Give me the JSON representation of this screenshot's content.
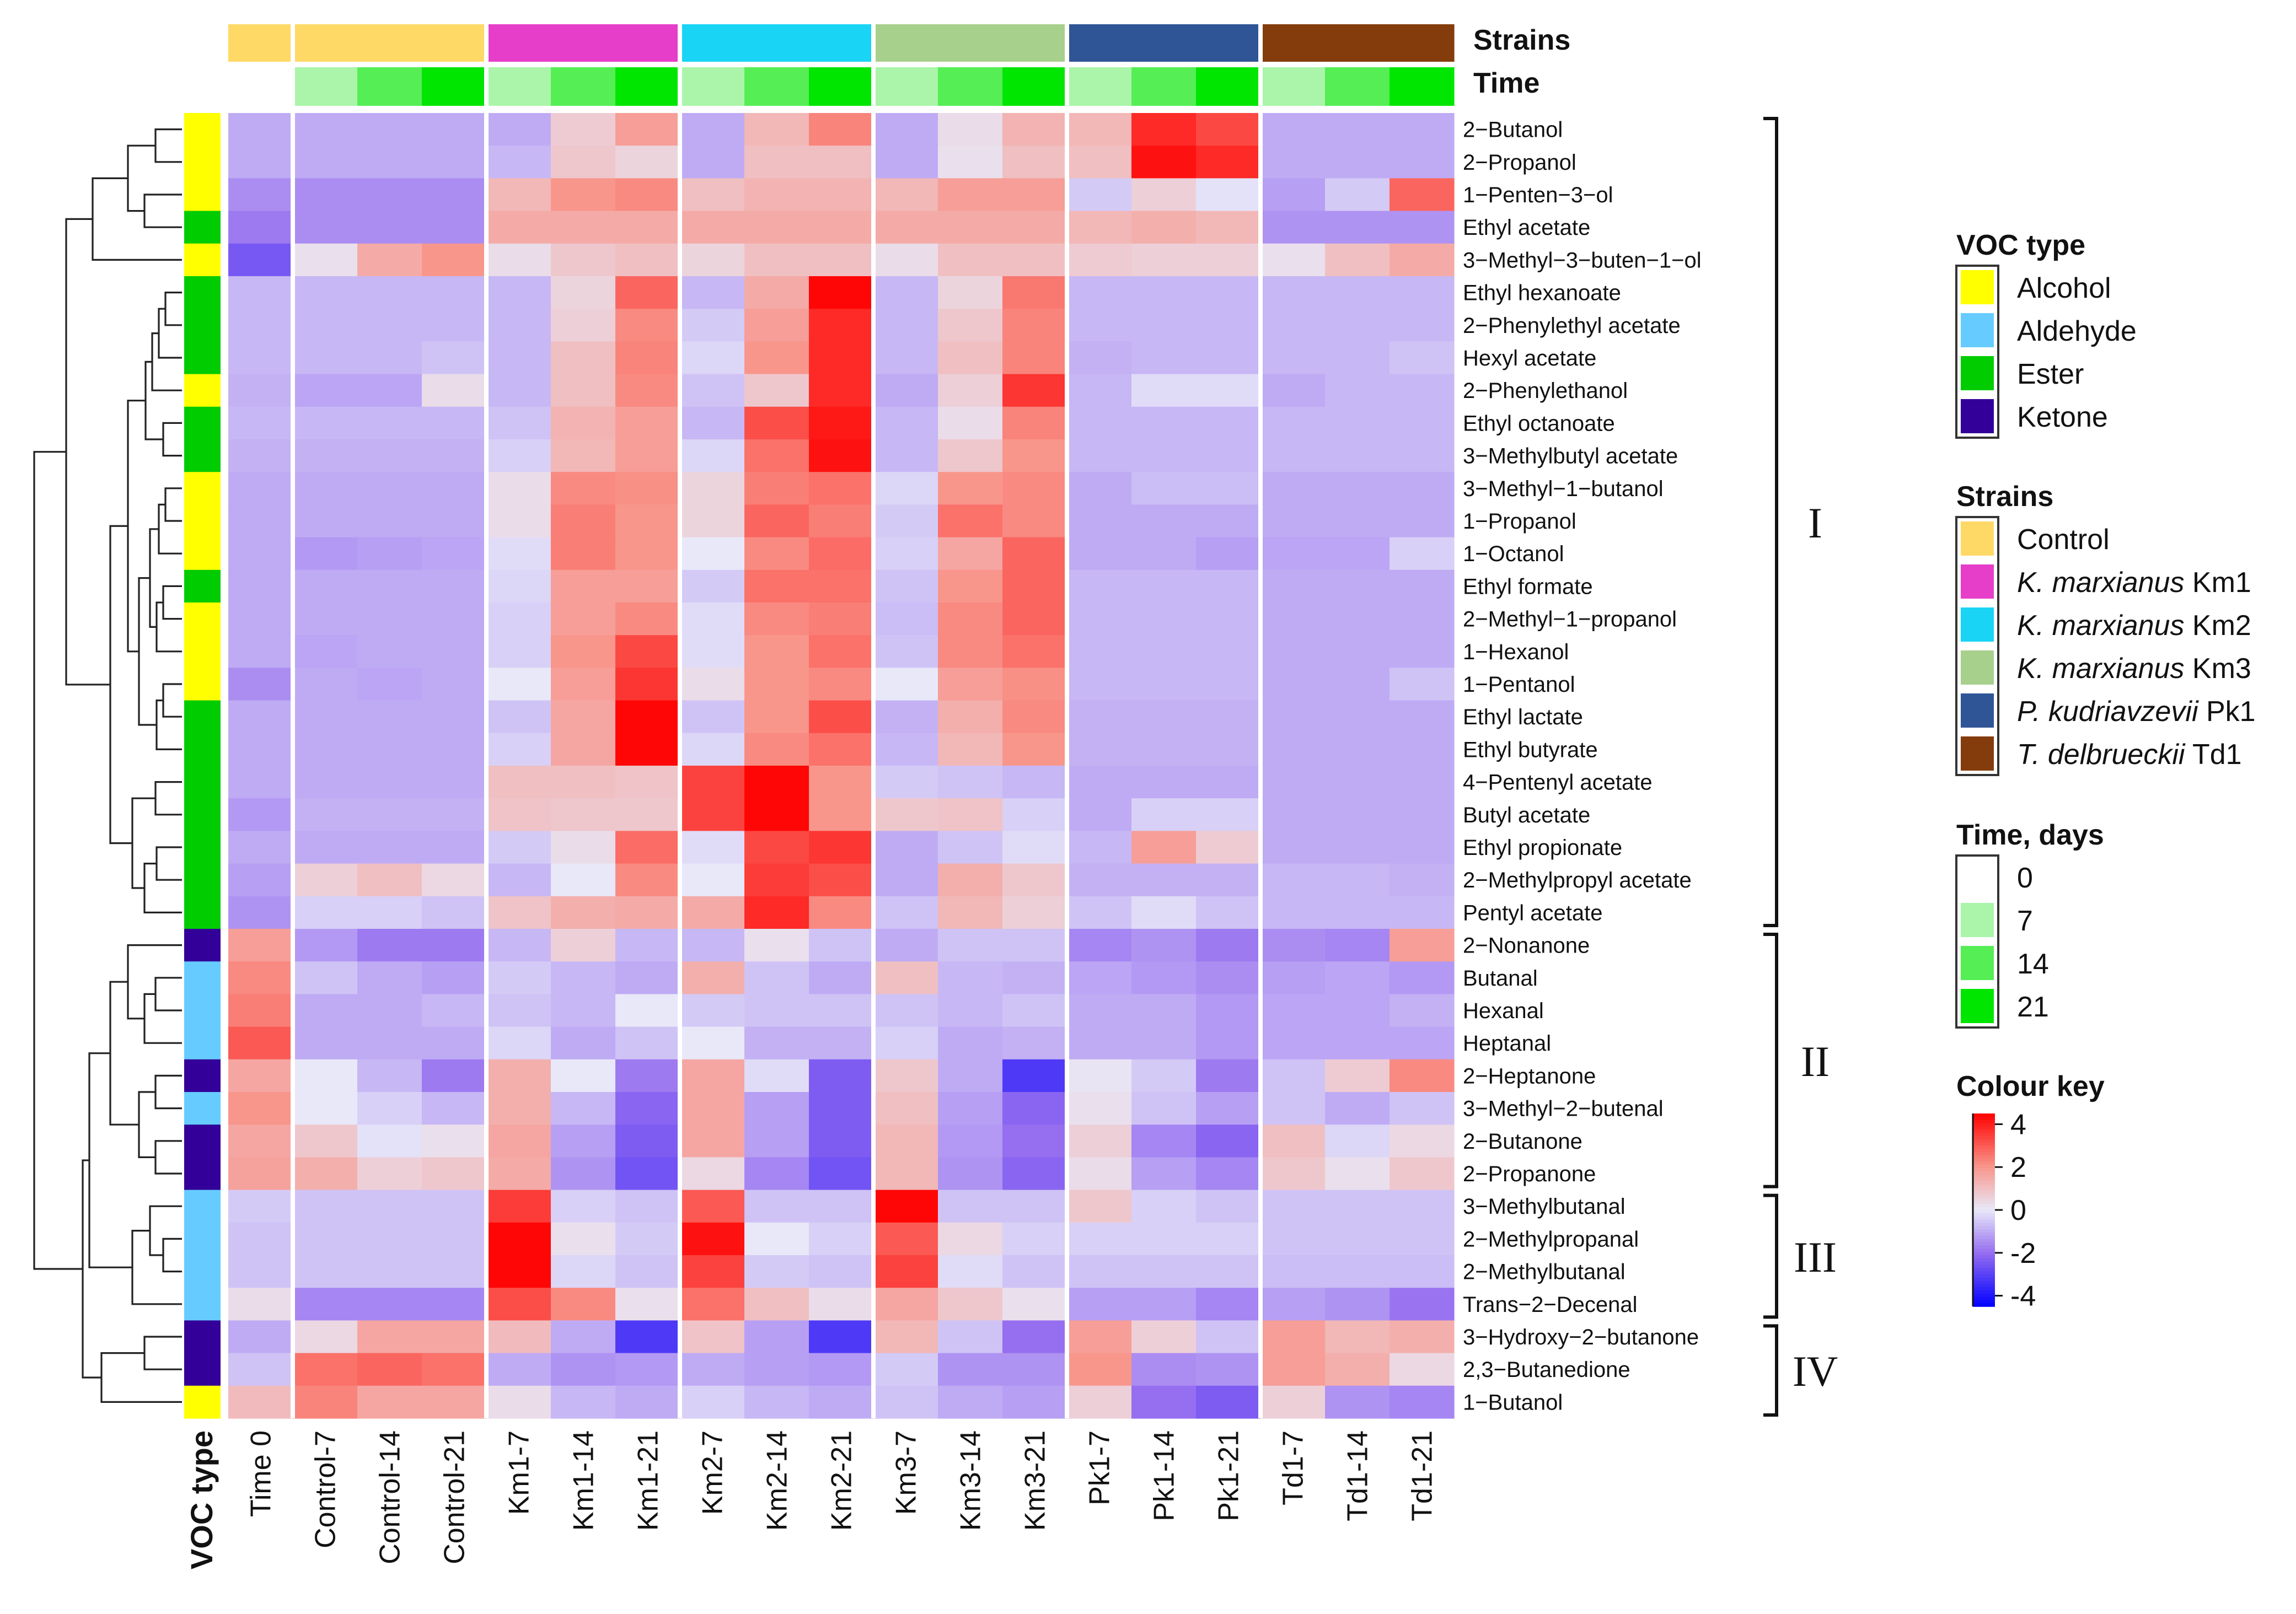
{
  "chart_data": {
    "type": "heatmap",
    "title": "",
    "header_labels": {
      "strains": "Strains",
      "time": "Time"
    },
    "columns": [
      "Time 0",
      "Control-7",
      "Control-14",
      "Control-21",
      "Km1-7",
      "Km1-14",
      "Km1-21",
      "Km2-7",
      "Km2-14",
      "Km2-21",
      "Km3-7",
      "Km3-14",
      "Km3-21",
      "Pk1-7",
      "Pk1-14",
      "Pk1-21",
      "Td1-7",
      "Td1-14",
      "Td1-21"
    ],
    "column_strain": [
      "Control",
      "Control",
      "Control",
      "Control",
      "K. marxianus Km1",
      "K. marxianus Km1",
      "K. marxianus Km1",
      "K. marxianus Km2",
      "K. marxianus Km2",
      "K. marxianus Km2",
      "K. marxianus Km3",
      "K. marxianus Km3",
      "K. marxianus Km3",
      "P. kudriavzevii Pk1",
      "P. kudriavzevii Pk1",
      "P. kudriavzevii Pk1",
      "T. delbrueckii Td1",
      "T. delbrueckii Td1",
      "T. delbrueckii Td1"
    ],
    "column_time": [
      0,
      7,
      14,
      21,
      7,
      14,
      21,
      7,
      14,
      21,
      7,
      14,
      21,
      7,
      14,
      21,
      7,
      14,
      21
    ],
    "rows": [
      {
        "name": "2−Butanol",
        "voc": "Alcohol",
        "values": [
          -1,
          -1,
          -1,
          -1,
          -1,
          0.7,
          1.8,
          -1,
          1.2,
          2.3,
          -1,
          0.3,
          1.3,
          1.2,
          3.8,
          3.3,
          -1,
          -1,
          -1
        ]
      },
      {
        "name": "2−Propanol",
        "voc": "Alcohol",
        "values": [
          -1,
          -1,
          -1,
          -1,
          -0.8,
          0.8,
          0.5,
          -1,
          1,
          1,
          -1,
          0.2,
          1,
          1,
          4.2,
          3.8,
          -1,
          -1,
          -1
        ]
      },
      {
        "name": "1−Penten−3−ol",
        "voc": "Alcohol",
        "values": [
          -1.5,
          -1.5,
          -1.5,
          -1.5,
          1.2,
          2,
          2.2,
          1,
          1.3,
          1.3,
          1.2,
          1.8,
          1.8,
          -0.5,
          0.6,
          -0.1,
          -1.2,
          -0.5,
          2.8
        ]
      },
      {
        "name": "Ethyl acetate",
        "voc": "Ester",
        "values": [
          -1.8,
          -1.5,
          -1.5,
          -1.5,
          1.5,
          1.5,
          1.5,
          1.5,
          1.5,
          1.5,
          1.5,
          1.5,
          1.5,
          1.2,
          1.4,
          1.2,
          -1.4,
          -1.4,
          -1.4
        ]
      },
      {
        "name": "3−Methyl−3−buten−1−ol",
        "voc": "Alcohol",
        "values": [
          -2.5,
          0.2,
          1.5,
          2,
          0.3,
          0.8,
          1,
          0.5,
          1,
          1,
          0.3,
          1,
          1,
          0.7,
          0.6,
          0.6,
          0.2,
          1,
          1.5
        ]
      },
      {
        "name": "Ethyl hexanoate",
        "voc": "Ester",
        "values": [
          -0.8,
          -0.8,
          -0.8,
          -0.8,
          -0.8,
          0.5,
          2.8,
          -0.8,
          1.5,
          4.4,
          -0.8,
          0.5,
          2.5,
          -0.8,
          -0.8,
          -0.8,
          -0.8,
          -0.8,
          -0.8
        ]
      },
      {
        "name": "2−Phenylethyl acetate",
        "voc": "Ester",
        "values": [
          -0.8,
          -0.8,
          -0.8,
          -0.8,
          -0.8,
          0.6,
          2.2,
          -0.5,
          1.8,
          3.8,
          -0.8,
          0.8,
          2.3,
          -0.8,
          -0.8,
          -0.8,
          -0.8,
          -0.8,
          -0.8
        ]
      },
      {
        "name": "Hexyl acetate",
        "voc": "Ester",
        "values": [
          -0.8,
          -0.8,
          -0.8,
          -0.6,
          -0.8,
          1,
          2.3,
          -0.3,
          2,
          3.8,
          -0.8,
          1,
          2.3,
          -0.9,
          -0.8,
          -0.8,
          -0.8,
          -0.8,
          -0.6
        ]
      },
      {
        "name": "2−Phenylethanol",
        "voc": "Alcohol",
        "values": [
          -0.9,
          -1.1,
          -1.1,
          0.3,
          -0.8,
          1,
          2.2,
          -0.6,
          0.8,
          3.8,
          -1,
          0.6,
          3.6,
          -0.8,
          -0.2,
          -0.2,
          -1,
          -0.8,
          -0.8
        ]
      },
      {
        "name": "Ethyl octanoate",
        "voc": "Ester",
        "values": [
          -0.8,
          -0.8,
          -0.8,
          -0.8,
          -0.6,
          1.3,
          1.8,
          -0.8,
          3.2,
          4.1,
          -0.8,
          0.3,
          2.3,
          -0.8,
          -0.8,
          -0.8,
          -0.8,
          -0.8,
          -0.8
        ]
      },
      {
        "name": "3−Methylbutyl acetate",
        "voc": "Ester",
        "values": [
          -0.9,
          -0.9,
          -0.9,
          -0.9,
          -0.4,
          1.2,
          1.8,
          -0.3,
          2.6,
          4.2,
          -0.8,
          0.8,
          2,
          -0.8,
          -0.8,
          -0.8,
          -0.8,
          -0.8,
          -0.8
        ]
      },
      {
        "name": "3−Methyl−1−butanol",
        "voc": "Alcohol",
        "values": [
          -1,
          -1,
          -1,
          -1,
          0.3,
          2.2,
          2.1,
          0.5,
          2.4,
          2.6,
          -0.3,
          2,
          2.2,
          -1,
          -0.7,
          -0.7,
          -1,
          -1,
          -1
        ]
      },
      {
        "name": "1−Propanol",
        "voc": "Alcohol",
        "values": [
          -1,
          -1,
          -1,
          -1,
          0.3,
          2.4,
          2,
          0.5,
          2.8,
          2.4,
          -0.5,
          2.6,
          2.2,
          -1,
          -1,
          -1,
          -1,
          -1,
          -1
        ]
      },
      {
        "name": "1−Octanol",
        "voc": "Alcohol",
        "values": [
          -1,
          -1.3,
          -1.2,
          -1.1,
          -0.2,
          2.4,
          2,
          0,
          2.2,
          2.7,
          -0.4,
          1.6,
          2.8,
          -1,
          -1,
          -1.2,
          -1.1,
          -1.1,
          -0.4
        ]
      },
      {
        "name": "Ethyl formate",
        "voc": "Ester",
        "values": [
          -1,
          -1,
          -1,
          -1,
          -0.3,
          1.8,
          1.8,
          -0.5,
          2.6,
          2.6,
          -0.6,
          2,
          2.8,
          -0.8,
          -0.8,
          -0.8,
          -1,
          -1,
          -1
        ]
      },
      {
        "name": "2−Methyl−1−propanol",
        "voc": "Alcohol",
        "values": [
          -1,
          -1,
          -1,
          -1,
          -0.4,
          1.8,
          2.2,
          -0.2,
          2.2,
          2.4,
          -0.7,
          2.2,
          2.8,
          -0.8,
          -0.8,
          -0.8,
          -1,
          -1,
          -1
        ]
      },
      {
        "name": "1−Hexanol",
        "voc": "Alcohol",
        "values": [
          -1,
          -1.1,
          -1,
          -1,
          -0.4,
          2,
          3.3,
          -0.2,
          2,
          2.6,
          -0.6,
          2.2,
          2.6,
          -0.8,
          -0.8,
          -0.8,
          -1,
          -1,
          -1
        ]
      },
      {
        "name": "1−Pentanol",
        "voc": "Alcohol",
        "values": [
          -1.5,
          -1,
          -1.1,
          -1,
          0,
          1.8,
          3.6,
          0.3,
          2,
          2.2,
          0,
          1.8,
          2.1,
          -0.8,
          -0.8,
          -0.8,
          -1,
          -1,
          -0.6
        ]
      },
      {
        "name": "Ethyl lactate",
        "voc": "Ester",
        "values": [
          -1,
          -1,
          -1,
          -1,
          -0.6,
          1.6,
          4.4,
          -0.6,
          2,
          3.2,
          -0.9,
          1.4,
          2.2,
          -0.9,
          -0.9,
          -0.9,
          -1,
          -1,
          -1
        ]
      },
      {
        "name": "Ethyl butyrate",
        "voc": "Ester",
        "values": [
          -1,
          -1,
          -1,
          -1,
          -0.4,
          1.6,
          4.4,
          -0.3,
          2.2,
          2.6,
          -0.8,
          1.2,
          2,
          -0.9,
          -0.9,
          -0.9,
          -1,
          -1,
          -1
        ]
      },
      {
        "name": "4−Pentenyl acetate",
        "voc": "Ester",
        "values": [
          -1,
          -1,
          -1,
          -1,
          1,
          1,
          0.9,
          3.4,
          4.4,
          2,
          -0.5,
          -0.6,
          -0.8,
          -1,
          -1,
          -1,
          -1,
          -1,
          -1
        ]
      },
      {
        "name": "Butyl acetate",
        "voc": "Ester",
        "values": [
          -1.3,
          -0.9,
          -0.9,
          -0.9,
          0.9,
          0.8,
          0.8,
          3.4,
          4.4,
          2,
          0.8,
          0.9,
          -0.4,
          -1,
          -0.4,
          -0.4,
          -1,
          -1,
          -1
        ]
      },
      {
        "name": "Ethyl propionate",
        "voc": "Ester",
        "values": [
          -1,
          -1,
          -1,
          -1,
          -0.5,
          0.3,
          2.7,
          -0.2,
          3.3,
          3.6,
          -1,
          -0.6,
          -0.2,
          -0.8,
          1.8,
          0.7,
          -1,
          -1,
          -1
        ]
      },
      {
        "name": "2−Methylpropyl acetate",
        "voc": "Ester",
        "values": [
          -1.2,
          0.6,
          1,
          0.4,
          -0.8,
          0,
          2.2,
          0,
          3.5,
          3.2,
          -1,
          1.4,
          0.8,
          -0.9,
          -0.9,
          -0.9,
          -0.8,
          -0.8,
          -0.9
        ]
      },
      {
        "name": "Pentyl acetate",
        "voc": "Ester",
        "values": [
          -1.4,
          -0.4,
          -0.4,
          -0.6,
          0.9,
          1.4,
          1.5,
          1.5,
          3.8,
          2.2,
          -0.6,
          1.2,
          0.6,
          -0.6,
          -0.2,
          -0.6,
          -0.8,
          -0.8,
          -0.8
        ]
      },
      {
        "name": "2−Nonanone",
        "voc": "Ketone",
        "values": [
          1.8,
          -1.3,
          -1.8,
          -1.8,
          -0.8,
          0.6,
          -0.8,
          -0.8,
          0.2,
          -0.6,
          -1,
          -0.6,
          -0.6,
          -1.6,
          -1.4,
          -1.8,
          -1.5,
          -1.6,
          1.8
        ]
      },
      {
        "name": "Butanal",
        "voc": "Aldehyde",
        "values": [
          2.2,
          -0.6,
          -1,
          -1.2,
          -0.5,
          -0.8,
          -1,
          1.4,
          -0.6,
          -1,
          1,
          -0.8,
          -0.9,
          -1.1,
          -1.3,
          -1.5,
          -1.2,
          -1.1,
          -1.3
        ]
      },
      {
        "name": "Hexanal",
        "voc": "Aldehyde",
        "values": [
          2.4,
          -1,
          -1,
          -0.8,
          -0.6,
          -0.8,
          0,
          -0.5,
          -0.6,
          -0.6,
          -0.6,
          -0.8,
          -0.6,
          -1,
          -1,
          -1.3,
          -1.1,
          -1.1,
          -0.9
        ]
      },
      {
        "name": "Heptanal",
        "voc": "Aldehyde",
        "values": [
          3,
          -1,
          -1,
          -1,
          -0.3,
          -1,
          -0.6,
          0,
          -0.9,
          -0.9,
          -0.4,
          -1,
          -0.9,
          -1,
          -1,
          -1.3,
          -1.1,
          -1.1,
          -1.1
        ]
      },
      {
        "name": "2−Heptanone",
        "voc": "Ketone",
        "values": [
          1.6,
          0,
          -0.8,
          -1.8,
          1.4,
          0,
          -1.8,
          1.6,
          -0.2,
          -2.4,
          0.8,
          -1,
          -3.2,
          0.1,
          -0.5,
          -1.8,
          -0.6,
          0.7,
          2.2
        ]
      },
      {
        "name": "3−Methyl−2−butenal",
        "voc": "Aldehyde",
        "values": [
          2,
          0,
          -0.4,
          -0.8,
          1.4,
          -0.8,
          -2.2,
          1.6,
          -1.2,
          -2.4,
          1,
          -1.2,
          -2.2,
          0.2,
          -0.6,
          -1.2,
          -0.6,
          -1,
          -0.6
        ]
      },
      {
        "name": "2−Butanone",
        "voc": "Ketone",
        "values": [
          1.6,
          0.8,
          -0.1,
          0.2,
          1.6,
          -1.2,
          -2.4,
          1.6,
          -1.2,
          -2.4,
          1.2,
          -1.3,
          -2,
          0.6,
          -1.6,
          -2.2,
          1,
          -0.3,
          0.4
        ]
      },
      {
        "name": "2−Propanone",
        "voc": "Ketone",
        "values": [
          1.7,
          1.4,
          0.6,
          0.8,
          1.5,
          -1.4,
          -2.6,
          0.4,
          -1.6,
          -2.6,
          1.2,
          -1.4,
          -2.2,
          0.3,
          -1.2,
          -1.6,
          0.8,
          0.2,
          0.8
        ]
      },
      {
        "name": "3−Methylbutanal",
        "voc": "Aldehyde",
        "values": [
          -0.5,
          -0.6,
          -0.6,
          -0.6,
          3.5,
          -0.4,
          -0.6,
          3,
          -0.6,
          -0.6,
          4.4,
          -0.6,
          -0.6,
          0.8,
          -0.4,
          -0.6,
          -0.6,
          -0.6,
          -0.6
        ]
      },
      {
        "name": "2−Methylpropanal",
        "voc": "Aldehyde",
        "values": [
          -0.6,
          -0.6,
          -0.6,
          -0.6,
          4.4,
          0.2,
          -0.5,
          4.2,
          0,
          -0.4,
          3,
          0.4,
          -0.4,
          -0.4,
          -0.4,
          -0.4,
          -0.6,
          -0.6,
          -0.6
        ]
      },
      {
        "name": "2−Methylbutanal",
        "voc": "Aldehyde",
        "values": [
          -0.6,
          -0.6,
          -0.6,
          -0.6,
          4.4,
          -0.3,
          -0.6,
          3.4,
          -0.5,
          -0.6,
          3.4,
          -0.2,
          -0.6,
          -0.6,
          -0.6,
          -0.6,
          -0.7,
          -0.7,
          -0.7
        ]
      },
      {
        "name": "Trans−2−Decenal",
        "voc": "Aldehyde",
        "values": [
          0.3,
          -1.6,
          -1.6,
          -1.6,
          3.2,
          2.2,
          0.2,
          2.6,
          1,
          0.3,
          1.6,
          0.8,
          0.2,
          -1.2,
          -1.2,
          -1.6,
          -1.2,
          -1.4,
          -1.9
        ]
      },
      {
        "name": "3−Hydroxy−2−butanone",
        "voc": "Ketone",
        "values": [
          -1,
          0.4,
          1.6,
          1.6,
          1.1,
          -1,
          -3.2,
          0.9,
          -1.2,
          -3.2,
          1.2,
          -0.6,
          -2,
          1.8,
          0.6,
          -0.6,
          1.8,
          1.2,
          1.4
        ]
      },
      {
        "name": "2,3−Butanedione",
        "voc": "Ketone",
        "values": [
          -0.6,
          2.6,
          2.8,
          2.6,
          -1,
          -1.4,
          -1.3,
          -1,
          -1.2,
          -1.3,
          -0.5,
          -1.4,
          -1.4,
          2,
          -1.5,
          -1.4,
          1.8,
          1.4,
          0.4
        ]
      },
      {
        "name": "1−Butanol",
        "voc": "Alcohol",
        "values": [
          1.1,
          2.3,
          1.6,
          1.6,
          0.3,
          -0.8,
          -1,
          -0.4,
          -0.8,
          -1,
          -0.6,
          -1,
          -1.2,
          0.6,
          -2,
          -2.4,
          0.6,
          -1.4,
          -1.6
        ]
      }
    ],
    "clusters": [
      {
        "label": "I",
        "first_row": 0,
        "last_row": 24
      },
      {
        "label": "II",
        "first_row": 25,
        "last_row": 32
      },
      {
        "label": "III",
        "first_row": 33,
        "last_row": 36
      },
      {
        "label": "IV",
        "first_row": 37,
        "last_row": 39
      }
    ],
    "voc_axis_label": "VOC type",
    "legend": {
      "voc_type": {
        "title": "VOC type",
        "items": [
          {
            "name": "Alcohol",
            "color": "#ffff00"
          },
          {
            "name": "Aldehyde",
            "color": "#66ccff"
          },
          {
            "name": "Ester",
            "color": "#00cc00"
          },
          {
            "name": "Ketone",
            "color": "#330099"
          }
        ]
      },
      "strains": {
        "title": "Strains",
        "items": [
          {
            "name": "Control",
            "prefix": "",
            "italic": "",
            "suffix": "Control",
            "color": "#ffd966"
          },
          {
            "name": "K. marxianus Km1",
            "prefix": "",
            "italic": "K. marxianus",
            "suffix": " Km1",
            "color": "#e63ec8"
          },
          {
            "name": "K. marxianus Km2",
            "prefix": "",
            "italic": "K. marxianus",
            "suffix": " Km2",
            "color": "#19d4f5"
          },
          {
            "name": "K. marxianus Km3",
            "prefix": "",
            "italic": "K. marxianus",
            "suffix": " Km3",
            "color": "#a8d08d"
          },
          {
            "name": "P. kudriavzevii Pk1",
            "prefix": "",
            "italic": "P. kudriavzevii",
            "suffix": " Pk1",
            "color": "#2f5597"
          },
          {
            "name": "T. delbrueckii Td1",
            "prefix": "",
            "italic": "T. delbrueckii",
            "suffix": " Td1",
            "color": "#843c0c"
          }
        ]
      },
      "time": {
        "title": "Time, days",
        "items": [
          {
            "name": "0",
            "color": "#ffffff"
          },
          {
            "name": "7",
            "color": "#aaf5aa"
          },
          {
            "name": "14",
            "color": "#55ee55"
          },
          {
            "name": "21",
            "color": "#00e600"
          }
        ]
      },
      "colour_key": {
        "title": "Colour key",
        "ticks": [
          4,
          2,
          0,
          -2,
          -4
        ],
        "tick_labels": [
          "4",
          "2",
          "0",
          "-2",
          "-4"
        ],
        "range": [
          -4.5,
          4.5
        ]
      }
    }
  }
}
